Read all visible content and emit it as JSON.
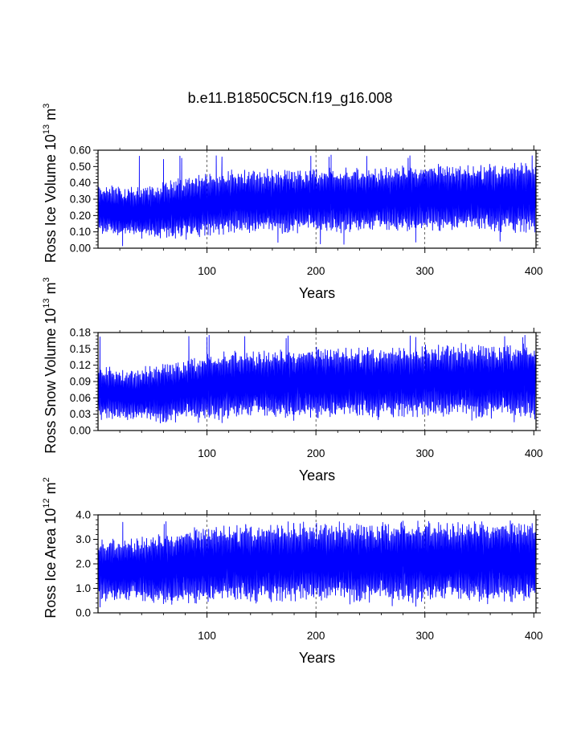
{
  "title": "b.e11.B1850C5CN.f19_g16.008",
  "colors": {
    "series": "#0000ff",
    "axis": "#000000",
    "grid": "#000000"
  },
  "chart_data": [
    {
      "type": "line",
      "ylabel": {
        "main": "Ross Ice Volume 10",
        "exp": "13",
        "unit": " m",
        "unit_exp": "3"
      },
      "xlabel": "Years",
      "xlim": [
        0,
        402
      ],
      "ylim": [
        0,
        0.6
      ],
      "xticks": [
        100,
        200,
        300,
        400
      ],
      "xtick_labels": [
        "100",
        "200",
        "300",
        "400"
      ],
      "yticks": [
        0,
        0.1,
        0.2,
        0.3,
        0.4,
        0.5,
        0.6
      ],
      "ytick_labels": [
        "0.00",
        "0.10",
        "0.20",
        "0.30",
        "0.40",
        "0.50",
        "0.60"
      ],
      "grid": "x dashed at 100, 200, 300",
      "series": [
        {
          "step": 0.0833,
          "count": 4824,
          "lo": [
            0.12,
            0.1,
            0.09,
            0.1,
            0.12,
            0.13,
            0.13,
            0.14,
            0.14,
            0.14,
            0.14,
            0.15,
            0.15,
            0.15,
            0.14,
            0.14
          ],
          "hi": [
            0.36,
            0.34,
            0.36,
            0.4,
            0.43,
            0.44,
            0.44,
            0.45,
            0.45,
            0.45,
            0.46,
            0.47,
            0.47,
            0.47,
            0.48,
            0.49
          ],
          "extremes": {
            "min": 0.01,
            "max": 0.57
          }
        }
      ]
    },
    {
      "type": "line",
      "ylabel": {
        "main": "Ross Snow Volume 10",
        "exp": "13",
        "unit": " m",
        "unit_exp": "3"
      },
      "xlabel": "Years",
      "xlim": [
        0,
        402
      ],
      "ylim": [
        0,
        0.18
      ],
      "xticks": [
        100,
        200,
        300,
        400
      ],
      "xtick_labels": [
        "100",
        "200",
        "300",
        "400"
      ],
      "yticks": [
        0,
        0.03,
        0.06,
        0.09,
        0.12,
        0.15,
        0.18
      ],
      "ytick_labels": [
        "0.00",
        "0.03",
        "0.06",
        "0.09",
        "0.12",
        "0.15",
        "0.18"
      ],
      "grid": "x dashed at 100, 200, 300",
      "series": [
        {
          "step": 0.0833,
          "count": 4824,
          "lo": [
            0.03,
            0.028,
            0.025,
            0.03,
            0.034,
            0.036,
            0.036,
            0.037,
            0.037,
            0.037,
            0.038,
            0.038,
            0.038,
            0.038,
            0.038,
            0.037
          ],
          "hi": [
            0.11,
            0.1,
            0.11,
            0.12,
            0.13,
            0.135,
            0.135,
            0.138,
            0.14,
            0.14,
            0.14,
            0.142,
            0.145,
            0.145,
            0.145,
            0.145
          ],
          "extremes": {
            "min": 0.01,
            "max": 0.175
          }
        }
      ]
    },
    {
      "type": "line",
      "ylabel": {
        "main": "Ross Ice Area 10",
        "exp": "12",
        "unit": " m",
        "unit_exp": "2"
      },
      "xlabel": "Years",
      "xlim": [
        0,
        402
      ],
      "ylim": [
        0,
        4.0
      ],
      "xticks": [
        100,
        200,
        300,
        400
      ],
      "xtick_labels": [
        "100",
        "200",
        "300",
        "400"
      ],
      "yticks": [
        0,
        1,
        2,
        3,
        4
      ],
      "ytick_labels": [
        "0.0",
        "1.0",
        "2.0",
        "3.0",
        "4.0"
      ],
      "grid": "x dashed at 100, 200, 300",
      "series": [
        {
          "step": 0.0833,
          "count": 4824,
          "lo": [
            0.75,
            0.7,
            0.65,
            0.7,
            0.75,
            0.78,
            0.78,
            0.8,
            0.8,
            0.8,
            0.8,
            0.8,
            0.8,
            0.8,
            0.8,
            0.8
          ],
          "hi": [
            2.7,
            2.8,
            2.9,
            3.1,
            3.25,
            3.3,
            3.3,
            3.35,
            3.35,
            3.35,
            3.35,
            3.4,
            3.4,
            3.4,
            3.4,
            3.4
          ],
          "extremes": {
            "min": 0.15,
            "max": 3.75
          }
        }
      ]
    }
  ]
}
